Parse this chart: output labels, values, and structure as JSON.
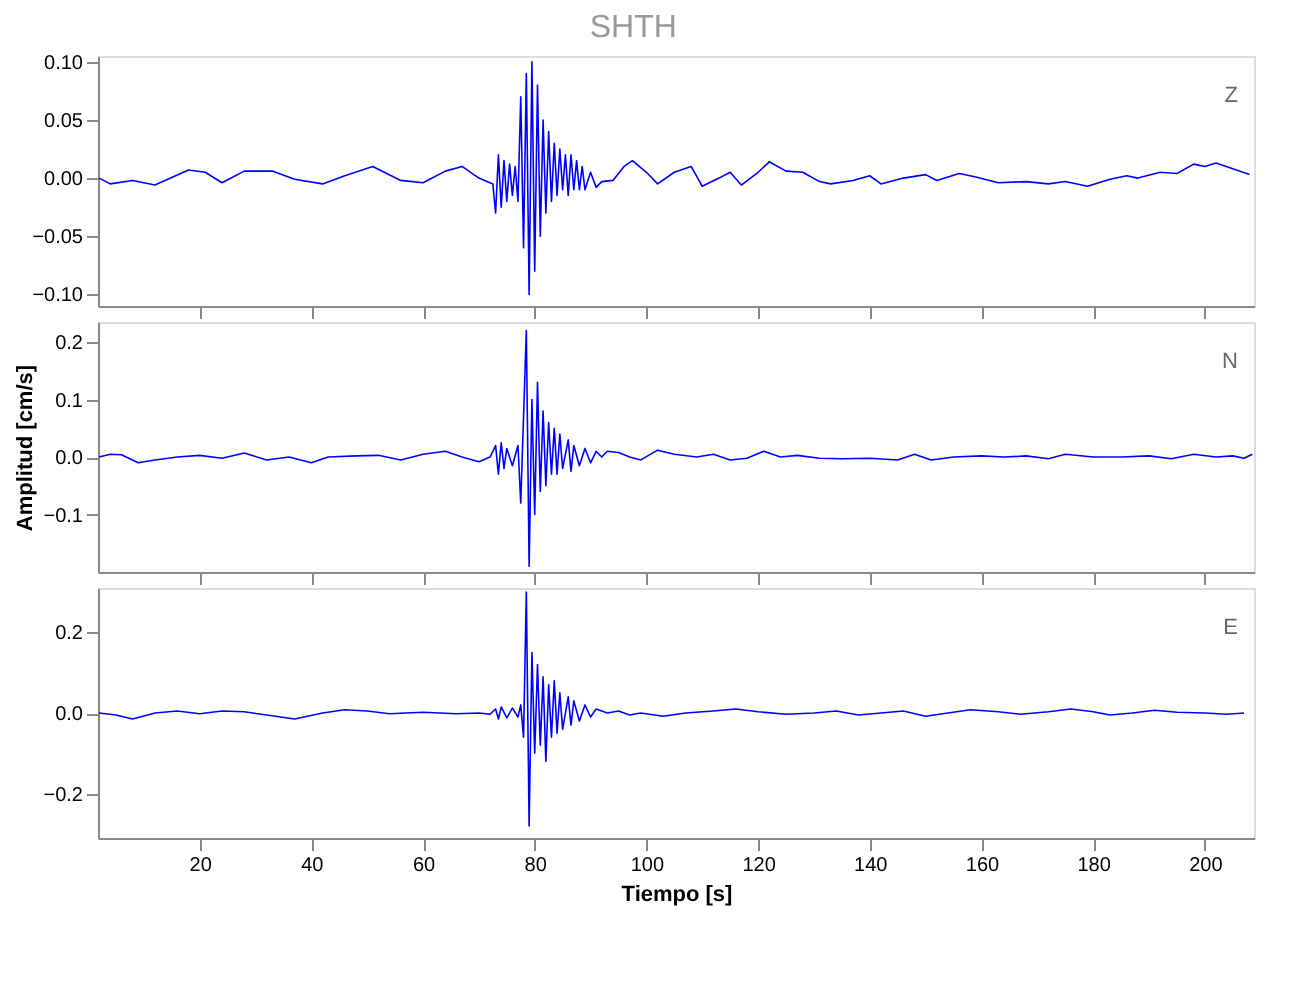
{
  "chart_data": [
    {
      "type": "line",
      "title": "SHTH",
      "annotations": [
        "Z"
      ],
      "tick_labels": "y",
      "grid": false,
      "xlim": [
        1.8,
        208.8
      ],
      "xticks": [
        20,
        40,
        60,
        80,
        100,
        120,
        140,
        160,
        180,
        200
      ],
      "ylim": [
        -0.11,
        0.105
      ],
      "yticks": [
        {
          "value": -0.1,
          "label": "−0.10"
        },
        {
          "value": -0.05,
          "label": "−0.05"
        },
        {
          "value": 0,
          "label": "0.00"
        },
        {
          "value": 0.05,
          "label": "0.05"
        },
        {
          "value": 0.1,
          "label": "0.10"
        }
      ],
      "x": [
        2,
        4,
        8,
        12,
        18,
        21,
        24,
        28,
        33,
        37,
        42,
        46,
        51,
        56,
        60,
        64,
        67,
        70,
        72.5,
        73,
        73.5,
        74,
        74.5,
        75,
        75.5,
        76,
        76.5,
        77,
        77.5,
        78,
        78.5,
        79,
        79.5,
        80,
        80.5,
        81,
        81.5,
        82,
        82.5,
        83,
        83.5,
        84,
        84.5,
        85,
        85.5,
        86,
        86.5,
        87,
        87.5,
        88,
        88.5,
        89,
        90,
        91,
        92,
        94,
        96,
        97.5,
        100,
        102,
        105,
        108,
        110,
        113,
        115,
        117,
        120,
        122,
        125,
        128,
        131,
        133,
        137,
        140,
        142,
        146,
        150,
        152,
        156,
        159,
        163,
        168,
        172,
        175,
        179,
        183,
        186,
        188,
        192,
        195,
        198,
        200,
        202,
        205,
        208
      ],
      "series": [
        {
          "color": "#0000ff",
          "values": [
            0,
            -0.005,
            -0.002,
            -0.006,
            0.007,
            0.005,
            -0.004,
            0.006,
            0.006,
            -0.001,
            -0.005,
            0.002,
            0.01,
            -0.002,
            -0.004,
            0.006,
            0.01,
            0,
            -0.005,
            -0.03,
            0.02,
            -0.025,
            0.015,
            -0.02,
            0.012,
            -0.015,
            0.01,
            -0.02,
            0.07,
            -0.06,
            0.09,
            -0.1,
            0.1,
            -0.08,
            0.08,
            -0.05,
            0.05,
            -0.03,
            0.04,
            -0.02,
            0.03,
            -0.015,
            0.025,
            -0.01,
            0.02,
            -0.015,
            0.02,
            -0.01,
            0.015,
            -0.01,
            0.01,
            -0.01,
            0.005,
            -0.008,
            -0.003,
            -0.002,
            0.01,
            0.015,
            0.005,
            -0.005,
            0.005,
            0.01,
            -0.007,
            0,
            0.005,
            -0.006,
            0.005,
            0.014,
            0.006,
            0.005,
            -0.003,
            -0.005,
            -0.002,
            0.002,
            -0.005,
            0,
            0.003,
            -0.002,
            0.004,
            0.001,
            -0.004,
            -0.003,
            -0.005,
            -0.003,
            -0.007,
            -0.001,
            0.002,
            0,
            0.005,
            0.004,
            0.012,
            0.01,
            0.013,
            0.008,
            0.003
          ]
        }
      ]
    },
    {
      "type": "line",
      "ylabel": "Amplitud [cm/s]",
      "annotations": [
        "N"
      ],
      "tick_labels": "y",
      "grid": false,
      "xlim": [
        1.8,
        208.8
      ],
      "xticks": [
        20,
        40,
        60,
        80,
        100,
        120,
        140,
        160,
        180,
        200
      ],
      "ylim": [
        -0.2,
        0.235
      ],
      "yticks": [
        {
          "value": -0.1,
          "label": "−0.1"
        },
        {
          "value": 0,
          "label": "0.0"
        },
        {
          "value": 0.1,
          "label": "0.1"
        },
        {
          "value": 0.2,
          "label": "0.2"
        }
      ],
      "x": [
        2,
        4,
        6,
        9,
        12,
        16,
        20,
        24,
        28,
        32,
        36,
        40,
        43,
        48,
        52,
        56,
        60,
        64,
        67,
        70,
        72,
        73,
        73.5,
        74,
        74.5,
        75,
        76,
        77,
        77.5,
        78,
        78.5,
        79,
        79.5,
        80,
        80.5,
        81,
        81.5,
        82,
        82.5,
        83,
        83.5,
        84,
        84.5,
        85,
        86,
        86.5,
        87,
        88,
        89,
        90,
        91,
        92,
        93,
        95,
        97,
        99,
        102,
        105,
        109,
        112,
        115,
        118,
        121,
        124,
        127,
        131,
        135,
        140,
        145,
        148,
        151,
        155,
        160,
        164,
        168,
        172,
        175,
        180,
        185,
        190,
        194,
        198,
        202,
        205,
        207,
        208.5
      ],
      "series": [
        {
          "color": "#0000ff",
          "values": [
            0,
            0.005,
            0.004,
            -0.01,
            -0.005,
            0,
            0.003,
            -0.002,
            0.007,
            -0.005,
            0,
            -0.01,
            0,
            0.002,
            0.003,
            -0.005,
            0.005,
            0.01,
            0,
            -0.008,
            0,
            0.02,
            -0.03,
            0.025,
            -0.02,
            0.015,
            -0.015,
            0.02,
            -0.08,
            0.07,
            0.22,
            -0.19,
            0.1,
            -0.1,
            0.13,
            -0.06,
            0.08,
            -0.05,
            0.06,
            -0.03,
            0.05,
            -0.03,
            0.04,
            -0.02,
            0.03,
            -0.025,
            0.02,
            -0.015,
            0.015,
            -0.01,
            0.01,
            0,
            0.01,
            0.008,
            0,
            -0.005,
            0.012,
            0.005,
            0,
            0.005,
            -0.005,
            -0.002,
            0.01,
            0,
            0.003,
            -0.002,
            -0.003,
            -0.002,
            -0.005,
            0.005,
            -0.005,
            0,
            0.002,
            0,
            0.002,
            -0.003,
            0.005,
            0,
            0,
            0.002,
            -0.003,
            0.005,
            0,
            0.002,
            -0.002,
            0.005
          ]
        }
      ]
    },
    {
      "type": "line",
      "xlabel": "Tiempo [s]",
      "annotations": [
        "E"
      ],
      "grid": false,
      "xlim": [
        1.8,
        208.8
      ],
      "xticks": [
        20,
        40,
        60,
        80,
        100,
        120,
        140,
        160,
        180,
        200
      ],
      "ylim": [
        -0.31,
        0.31
      ],
      "yticks": [
        {
          "value": -0.2,
          "label": "−0.2"
        },
        {
          "value": 0,
          "label": "0.0"
        },
        {
          "value": 0.2,
          "label": "0.2"
        }
      ],
      "x": [
        2,
        5,
        8,
        12,
        16,
        20,
        24,
        28,
        32,
        37,
        42,
        46,
        50,
        54,
        60,
        66,
        70,
        72,
        73,
        73.5,
        74,
        75,
        76,
        77,
        77.5,
        78,
        78.5,
        79,
        79.5,
        80,
        80.5,
        81,
        81.5,
        82,
        82.5,
        83,
        83.5,
        84,
        84.5,
        85,
        86,
        86.5,
        87,
        88,
        89,
        90,
        91,
        93,
        95,
        97,
        99,
        103,
        107,
        112,
        116,
        120,
        125,
        130,
        134,
        138,
        142,
        146,
        150,
        154,
        158,
        163,
        167,
        172,
        176,
        180,
        183,
        187,
        191,
        195,
        200,
        204,
        207
      ],
      "series": [
        {
          "color": "#0000ff",
          "values": [
            0,
            -0.005,
            -0.015,
            0,
            0.005,
            -0.002,
            0.005,
            0.003,
            -0.005,
            -0.015,
            0,
            0.008,
            0.005,
            -0.002,
            0.002,
            -0.002,
            0,
            -0.003,
            0.01,
            -0.015,
            0.015,
            -0.012,
            0.012,
            -0.01,
            0.02,
            -0.06,
            0.3,
            -0.28,
            0.15,
            -0.1,
            0.12,
            -0.08,
            0.09,
            -0.12,
            0.07,
            -0.06,
            0.08,
            -0.05,
            0.05,
            -0.04,
            0.04,
            -0.03,
            0.03,
            -0.02,
            0.02,
            -0.01,
            0.01,
            0,
            0.005,
            -0.005,
            0,
            -0.008,
            0,
            0.005,
            0.01,
            0.003,
            -0.003,
            0,
            0.005,
            -0.005,
            0,
            0.005,
            -0.008,
            0,
            0.008,
            0.003,
            -0.003,
            0.003,
            0.01,
            0.003,
            -0.005,
            0,
            0.007,
            0.002,
            0,
            -0.003,
            0
          ]
        }
      ]
    }
  ]
}
